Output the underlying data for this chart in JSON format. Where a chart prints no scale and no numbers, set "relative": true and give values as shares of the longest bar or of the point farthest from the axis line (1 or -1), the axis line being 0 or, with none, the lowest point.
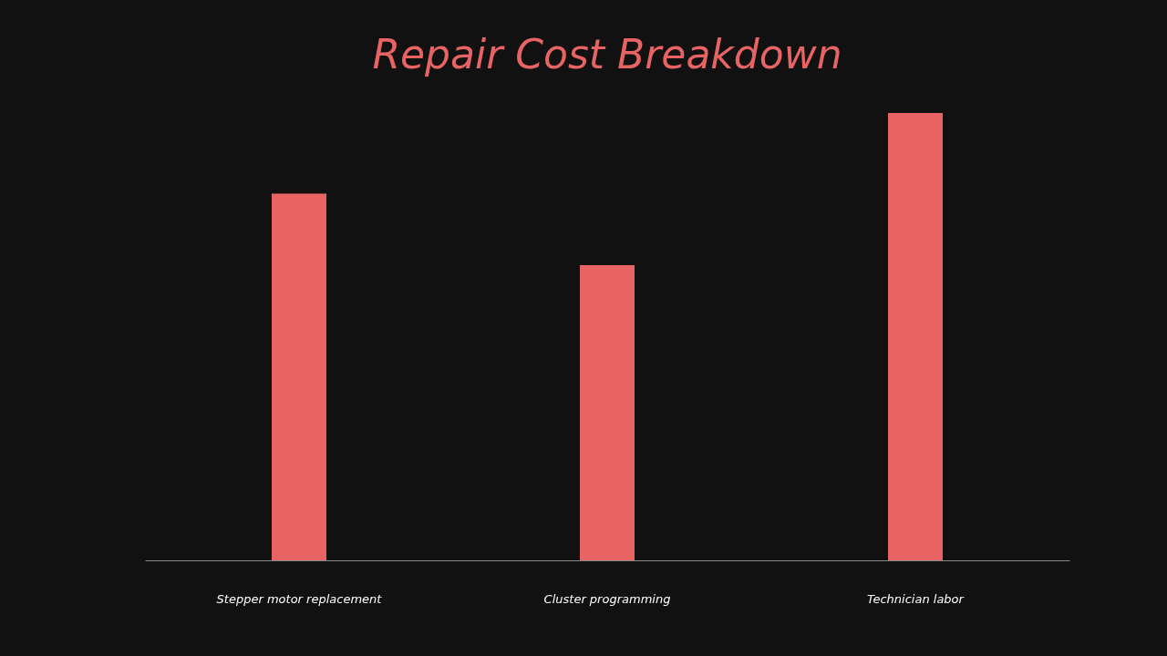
{
  "chart_data": {
    "type": "bar",
    "title": "Repair Cost Breakdown",
    "relative": true,
    "categories": [
      "Stepper motor replacement",
      "Cluster programming",
      "Technician labor"
    ],
    "values": [
      0.82,
      0.66,
      1
    ],
    "color": "#e86464",
    "grid": false
  }
}
